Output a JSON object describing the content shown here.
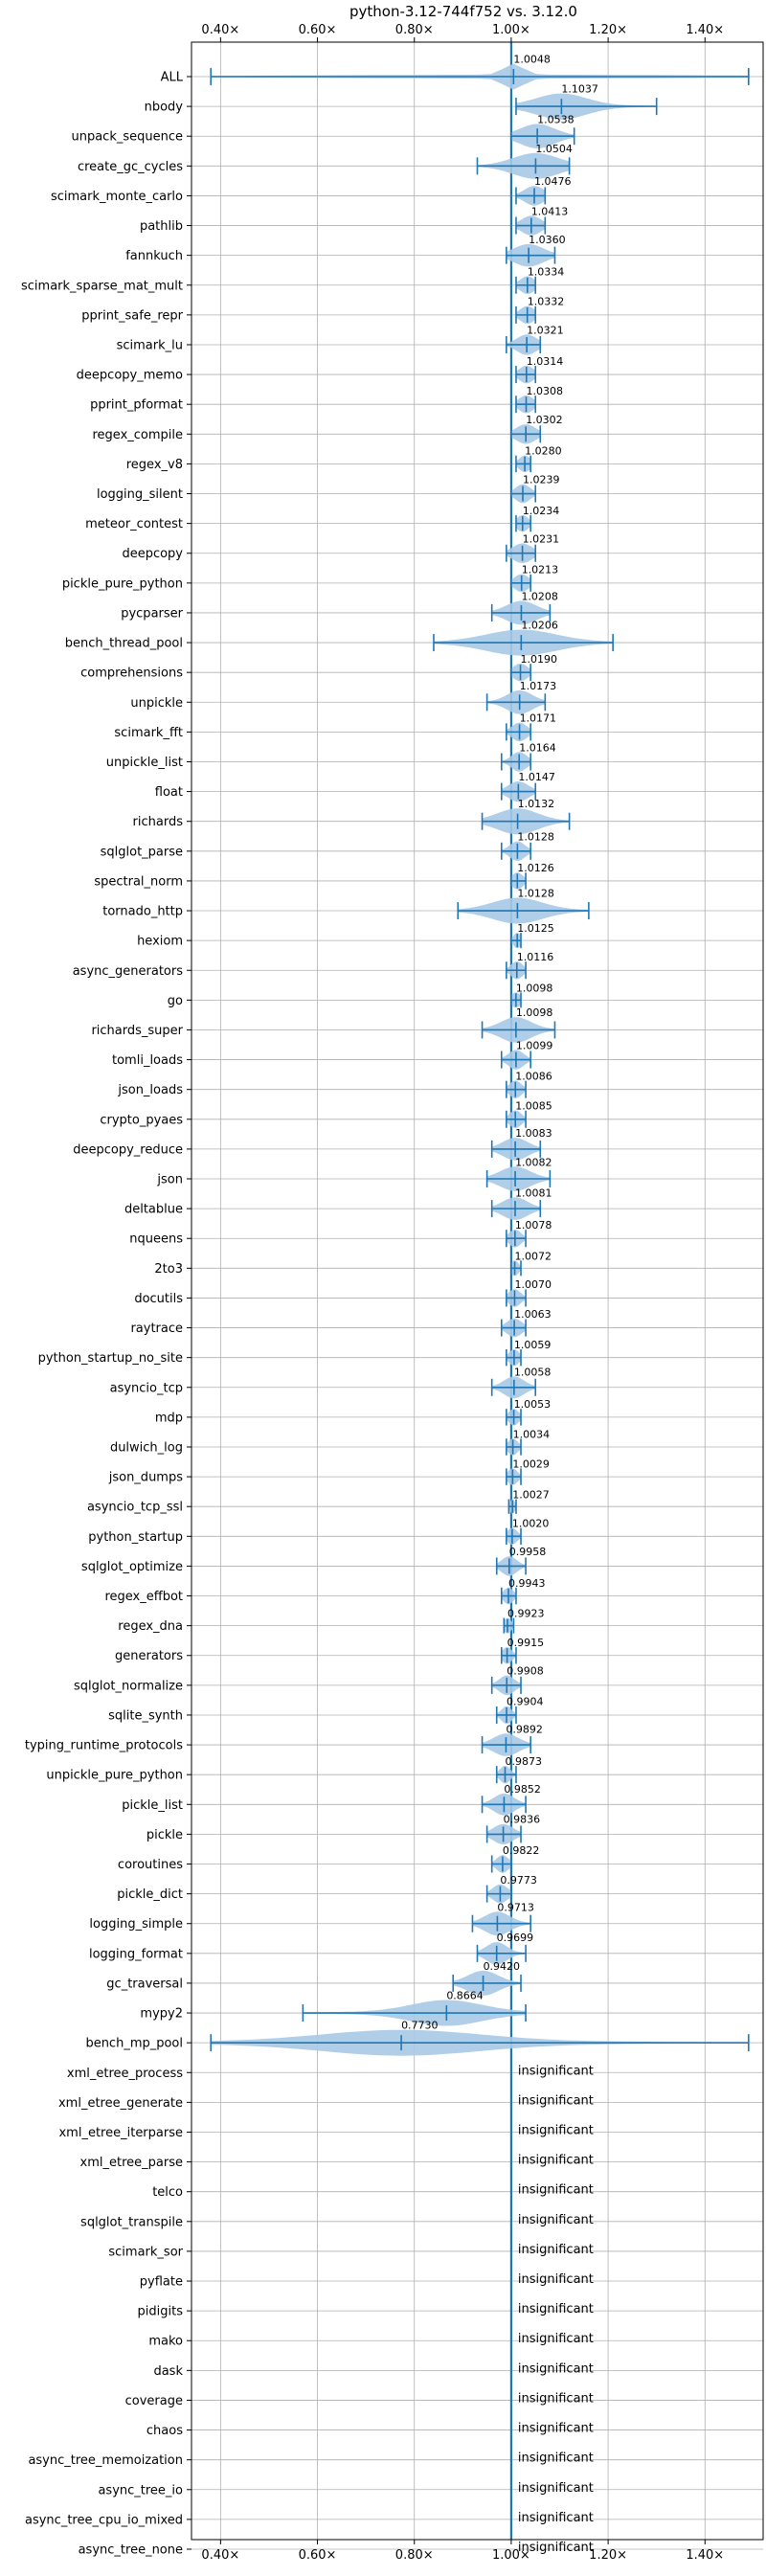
{
  "chart_data": {
    "type": "violin",
    "title": "python-3.12-744f752 vs. 3.12.0",
    "xlim": [
      0.34,
      1.52
    ],
    "xticks": [
      0.4,
      0.6,
      0.8,
      1.0,
      1.2,
      1.4
    ],
    "xtick_labels": [
      "0.40×",
      "0.60×",
      "0.80×",
      "1.00×",
      "1.20×",
      "1.40×"
    ],
    "grid": true,
    "reference_line": 1.0,
    "colors": {
      "violin": "#a9c9e6",
      "line": "#1f77b4",
      "grid": "#b0b0b0"
    },
    "insignificant_label": "insignificant",
    "benchmarks": [
      {
        "name": "ALL",
        "mean": 1.0048,
        "min": 0.38,
        "max": 1.49,
        "spread": 0.02
      },
      {
        "name": "nbody",
        "mean": 1.1037,
        "min": 1.01,
        "max": 1.3,
        "spread": 0.05
      },
      {
        "name": "unpack_sequence",
        "mean": 1.0538,
        "min": 1.0,
        "max": 1.13,
        "spread": 0.035
      },
      {
        "name": "create_gc_cycles",
        "mean": 1.0504,
        "min": 0.93,
        "max": 1.12,
        "spread": 0.045
      },
      {
        "name": "scimark_monte_carlo",
        "mean": 1.0476,
        "min": 1.01,
        "max": 1.07,
        "spread": 0.02
      },
      {
        "name": "pathlib",
        "mean": 1.0413,
        "min": 1.01,
        "max": 1.07,
        "spread": 0.02
      },
      {
        "name": "fannkuch",
        "mean": 1.036,
        "min": 0.99,
        "max": 1.09,
        "spread": 0.03
      },
      {
        "name": "scimark_sparse_mat_mult",
        "mean": 1.0334,
        "min": 1.01,
        "max": 1.05,
        "spread": 0.015
      },
      {
        "name": "pprint_safe_repr",
        "mean": 1.0332,
        "min": 1.01,
        "max": 1.05,
        "spread": 0.015
      },
      {
        "name": "scimark_lu",
        "mean": 1.0321,
        "min": 0.99,
        "max": 1.06,
        "spread": 0.02
      },
      {
        "name": "deepcopy_memo",
        "mean": 1.0314,
        "min": 1.01,
        "max": 1.05,
        "spread": 0.015
      },
      {
        "name": "pprint_pformat",
        "mean": 1.0308,
        "min": 1.01,
        "max": 1.05,
        "spread": 0.015
      },
      {
        "name": "regex_compile",
        "mean": 1.0302,
        "min": 1.0,
        "max": 1.06,
        "spread": 0.02
      },
      {
        "name": "regex_v8",
        "mean": 1.028,
        "min": 1.01,
        "max": 1.04,
        "spread": 0.012
      },
      {
        "name": "logging_silent",
        "mean": 1.0239,
        "min": 1.0,
        "max": 1.05,
        "spread": 0.015
      },
      {
        "name": "meteor_contest",
        "mean": 1.0234,
        "min": 1.01,
        "max": 1.04,
        "spread": 0.012
      },
      {
        "name": "deepcopy",
        "mean": 1.0231,
        "min": 0.99,
        "max": 1.05,
        "spread": 0.02
      },
      {
        "name": "pickle_pure_python",
        "mean": 1.0213,
        "min": 1.0,
        "max": 1.04,
        "spread": 0.015
      },
      {
        "name": "pycparser",
        "mean": 1.0208,
        "min": 0.96,
        "max": 1.08,
        "spread": 0.03
      },
      {
        "name": "bench_thread_pool",
        "mean": 1.0206,
        "min": 0.84,
        "max": 1.21,
        "spread": 0.07
      },
      {
        "name": "comprehensions",
        "mean": 1.019,
        "min": 1.0,
        "max": 1.04,
        "spread": 0.015
      },
      {
        "name": "unpickle",
        "mean": 1.0173,
        "min": 0.95,
        "max": 1.07,
        "spread": 0.025
      },
      {
        "name": "scimark_fft",
        "mean": 1.0171,
        "min": 0.99,
        "max": 1.04,
        "spread": 0.015
      },
      {
        "name": "unpickle_list",
        "mean": 1.0164,
        "min": 0.98,
        "max": 1.04,
        "spread": 0.015
      },
      {
        "name": "float",
        "mean": 1.0147,
        "min": 0.98,
        "max": 1.05,
        "spread": 0.02
      },
      {
        "name": "richards",
        "mean": 1.0132,
        "min": 0.94,
        "max": 1.12,
        "spread": 0.04
      },
      {
        "name": "sqlglot_parse",
        "mean": 1.0128,
        "min": 0.98,
        "max": 1.04,
        "spread": 0.015
      },
      {
        "name": "spectral_norm",
        "mean": 1.0126,
        "min": 1.0,
        "max": 1.03,
        "spread": 0.012
      },
      {
        "name": "tornado_http",
        "mean": 1.0128,
        "min": 0.89,
        "max": 1.16,
        "spread": 0.05
      },
      {
        "name": "hexiom",
        "mean": 1.0125,
        "min": 1.0,
        "max": 1.02,
        "spread": 0.008
      },
      {
        "name": "async_generators",
        "mean": 1.0116,
        "min": 0.99,
        "max": 1.03,
        "spread": 0.012
      },
      {
        "name": "go",
        "mean": 1.0098,
        "min": 1.0,
        "max": 1.02,
        "spread": 0.01
      },
      {
        "name": "richards_super",
        "mean": 1.0098,
        "min": 0.94,
        "max": 1.09,
        "spread": 0.03
      },
      {
        "name": "tomli_loads",
        "mean": 1.0099,
        "min": 0.98,
        "max": 1.04,
        "spread": 0.015
      },
      {
        "name": "json_loads",
        "mean": 1.0086,
        "min": 0.99,
        "max": 1.03,
        "spread": 0.012
      },
      {
        "name": "crypto_pyaes",
        "mean": 1.0085,
        "min": 0.99,
        "max": 1.03,
        "spread": 0.012
      },
      {
        "name": "deepcopy_reduce",
        "mean": 1.0083,
        "min": 0.96,
        "max": 1.06,
        "spread": 0.025
      },
      {
        "name": "json",
        "mean": 1.0082,
        "min": 0.95,
        "max": 1.08,
        "spread": 0.03
      },
      {
        "name": "deltablue",
        "mean": 1.0081,
        "min": 0.96,
        "max": 1.06,
        "spread": 0.025
      },
      {
        "name": "nqueens",
        "mean": 1.0078,
        "min": 0.99,
        "max": 1.03,
        "spread": 0.012
      },
      {
        "name": "2to3",
        "mean": 1.0072,
        "min": 1.0,
        "max": 1.02,
        "spread": 0.008
      },
      {
        "name": "docutils",
        "mean": 1.007,
        "min": 0.99,
        "max": 1.03,
        "spread": 0.012
      },
      {
        "name": "raytrace",
        "mean": 1.0063,
        "min": 0.98,
        "max": 1.03,
        "spread": 0.015
      },
      {
        "name": "python_startup_no_site",
        "mean": 1.0059,
        "min": 0.99,
        "max": 1.02,
        "spread": 0.01
      },
      {
        "name": "asyncio_tcp",
        "mean": 1.0058,
        "min": 0.96,
        "max": 1.05,
        "spread": 0.02
      },
      {
        "name": "mdp",
        "mean": 1.0053,
        "min": 0.99,
        "max": 1.02,
        "spread": 0.01
      },
      {
        "name": "dulwich_log",
        "mean": 1.0034,
        "min": 0.99,
        "max": 1.02,
        "spread": 0.01
      },
      {
        "name": "json_dumps",
        "mean": 1.0029,
        "min": 0.99,
        "max": 1.02,
        "spread": 0.01
      },
      {
        "name": "asyncio_tcp_ssl",
        "mean": 1.0027,
        "min": 0.995,
        "max": 1.01,
        "spread": 0.005
      },
      {
        "name": "python_startup",
        "mean": 1.002,
        "min": 0.99,
        "max": 1.02,
        "spread": 0.01
      },
      {
        "name": "sqlglot_optimize",
        "mean": 0.9958,
        "min": 0.97,
        "max": 1.03,
        "spread": 0.015
      },
      {
        "name": "regex_effbot",
        "mean": 0.9943,
        "min": 0.98,
        "max": 1.01,
        "spread": 0.01
      },
      {
        "name": "regex_dna",
        "mean": 0.9923,
        "min": 0.985,
        "max": 1.005,
        "spread": 0.008
      },
      {
        "name": "generators",
        "mean": 0.9915,
        "min": 0.98,
        "max": 1.01,
        "spread": 0.01
      },
      {
        "name": "sqlglot_normalize",
        "mean": 0.9908,
        "min": 0.96,
        "max": 1.02,
        "spread": 0.015
      },
      {
        "name": "sqlite_synth",
        "mean": 0.9904,
        "min": 0.97,
        "max": 1.01,
        "spread": 0.01
      },
      {
        "name": "typing_runtime_protocols",
        "mean": 0.9892,
        "min": 0.94,
        "max": 1.04,
        "spread": 0.025
      },
      {
        "name": "unpickle_pure_python",
        "mean": 0.9873,
        "min": 0.97,
        "max": 1.01,
        "spread": 0.01
      },
      {
        "name": "pickle_list",
        "mean": 0.9852,
        "min": 0.94,
        "max": 1.03,
        "spread": 0.02
      },
      {
        "name": "pickle",
        "mean": 0.9836,
        "min": 0.95,
        "max": 1.02,
        "spread": 0.02
      },
      {
        "name": "coroutines",
        "mean": 0.9822,
        "min": 0.96,
        "max": 1.0,
        "spread": 0.012
      },
      {
        "name": "pickle_dict",
        "mean": 0.9773,
        "min": 0.95,
        "max": 1.0,
        "spread": 0.015
      },
      {
        "name": "logging_simple",
        "mean": 0.9713,
        "min": 0.92,
        "max": 1.04,
        "spread": 0.025
      },
      {
        "name": "logging_format",
        "mean": 0.9699,
        "min": 0.93,
        "max": 1.03,
        "spread": 0.02
      },
      {
        "name": "gc_traversal",
        "mean": 0.942,
        "min": 0.88,
        "max": 1.02,
        "spread": 0.03
      },
      {
        "name": "mypy2",
        "mean": 0.8664,
        "min": 0.57,
        "max": 1.03,
        "spread": 0.07
      },
      {
        "name": "bench_mp_pool",
        "mean": 0.773,
        "min": 0.38,
        "max": 1.49,
        "spread": 0.16
      },
      {
        "name": "xml_etree_process",
        "insignificant": true
      },
      {
        "name": "xml_etree_generate",
        "insignificant": true
      },
      {
        "name": "xml_etree_iterparse",
        "insignificant": true
      },
      {
        "name": "xml_etree_parse",
        "insignificant": true
      },
      {
        "name": "telco",
        "insignificant": true
      },
      {
        "name": "sqlglot_transpile",
        "insignificant": true
      },
      {
        "name": "scimark_sor",
        "insignificant": true
      },
      {
        "name": "pyflate",
        "insignificant": true
      },
      {
        "name": "pidigits",
        "insignificant": true
      },
      {
        "name": "mako",
        "insignificant": true
      },
      {
        "name": "dask",
        "insignificant": true
      },
      {
        "name": "coverage",
        "insignificant": true
      },
      {
        "name": "chaos",
        "insignificant": true
      },
      {
        "name": "async_tree_memoization",
        "insignificant": true
      },
      {
        "name": "async_tree_io",
        "insignificant": true
      },
      {
        "name": "async_tree_cpu_io_mixed",
        "insignificant": true
      },
      {
        "name": "async_tree_none",
        "insignificant": true
      }
    ]
  }
}
